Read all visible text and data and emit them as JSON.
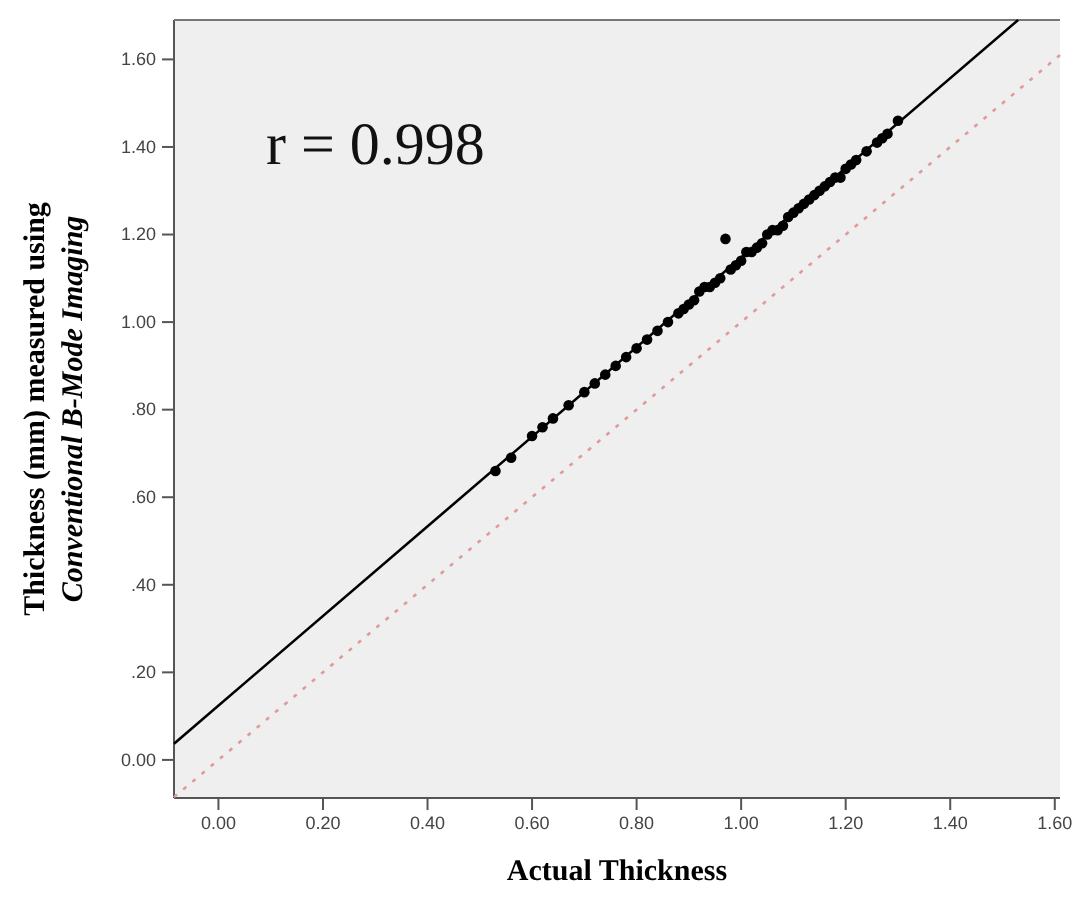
{
  "chart_data": {
    "type": "scatter",
    "xlabel": "Actual Thickness",
    "ylabel": "Thickness (mm) measured using\nConventional B-Mode Imaging",
    "annotations": [
      "r = 0.998"
    ],
    "xlim": [
      -0.085,
      1.61
    ],
    "ylim": [
      -0.087,
      1.69
    ],
    "xticks": [
      {
        "value": 0,
        "label": "0.00"
      },
      {
        "value": 0.2,
        "label": "0.20"
      },
      {
        "value": 0.4,
        "label": "0.40"
      },
      {
        "value": 0.6,
        "label": "0.60"
      },
      {
        "value": 0.8,
        "label": "0.80"
      },
      {
        "value": 1,
        "label": "1.00"
      },
      {
        "value": 1.2,
        "label": "1.20"
      },
      {
        "value": 1.4,
        "label": "1.40"
      },
      {
        "value": 1.6,
        "label": "1.60"
      }
    ],
    "yticks": [
      {
        "value": 0,
        "label": "0.00"
      },
      {
        "value": 0.2,
        "label": ".20"
      },
      {
        "value": 0.4,
        "label": ".40"
      },
      {
        "value": 0.6,
        "label": ".60"
      },
      {
        "value": 0.8,
        "label": ".80"
      },
      {
        "value": 1,
        "label": "1.00"
      },
      {
        "value": 1.2,
        "label": "1.20"
      },
      {
        "value": 1.4,
        "label": "1.40"
      },
      {
        "value": 1.6,
        "label": "1.60"
      }
    ],
    "grid": false,
    "series": [
      {
        "color": "#000000",
        "marker": "circle",
        "x": [
          0.53,
          0.56,
          0.6,
          0.62,
          0.64,
          0.67,
          0.7,
          0.72,
          0.74,
          0.76,
          0.78,
          0.8,
          0.82,
          0.84,
          0.86,
          0.88,
          0.89,
          0.9,
          0.91,
          0.92,
          0.93,
          0.94,
          0.95,
          0.96,
          0.97,
          0.98,
          0.99,
          1.0,
          1.01,
          1.02,
          1.03,
          1.04,
          1.05,
          1.06,
          1.07,
          1.08,
          1.09,
          1.1,
          1.11,
          1.12,
          1.13,
          1.14,
          1.15,
          1.16,
          1.17,
          1.18,
          1.19,
          1.2,
          1.21,
          1.22,
          1.24,
          1.26,
          1.27,
          1.28,
          1.3
        ],
        "values": [
          0.66,
          0.69,
          0.74,
          0.76,
          0.78,
          0.81,
          0.84,
          0.86,
          0.88,
          0.9,
          0.92,
          0.94,
          0.96,
          0.98,
          1.0,
          1.02,
          1.03,
          1.04,
          1.05,
          1.07,
          1.08,
          1.08,
          1.09,
          1.1,
          1.19,
          1.12,
          1.13,
          1.14,
          1.16,
          1.16,
          1.17,
          1.18,
          1.2,
          1.21,
          1.21,
          1.22,
          1.24,
          1.25,
          1.26,
          1.27,
          1.28,
          1.29,
          1.3,
          1.31,
          1.32,
          1.33,
          1.33,
          1.35,
          1.36,
          1.37,
          1.39,
          1.41,
          1.42,
          1.43,
          1.46
        ]
      },
      {
        "type": "line",
        "color": "#000000",
        "line_style": "solid",
        "x": [
          -0.085,
          1.53
        ],
        "values": [
          0.037,
          1.69
        ]
      },
      {
        "type": "line",
        "color": "#e09a9a",
        "line_style": "dotted",
        "x": [
          -0.085,
          1.61
        ],
        "values": [
          -0.085,
          1.61
        ]
      }
    ]
  }
}
